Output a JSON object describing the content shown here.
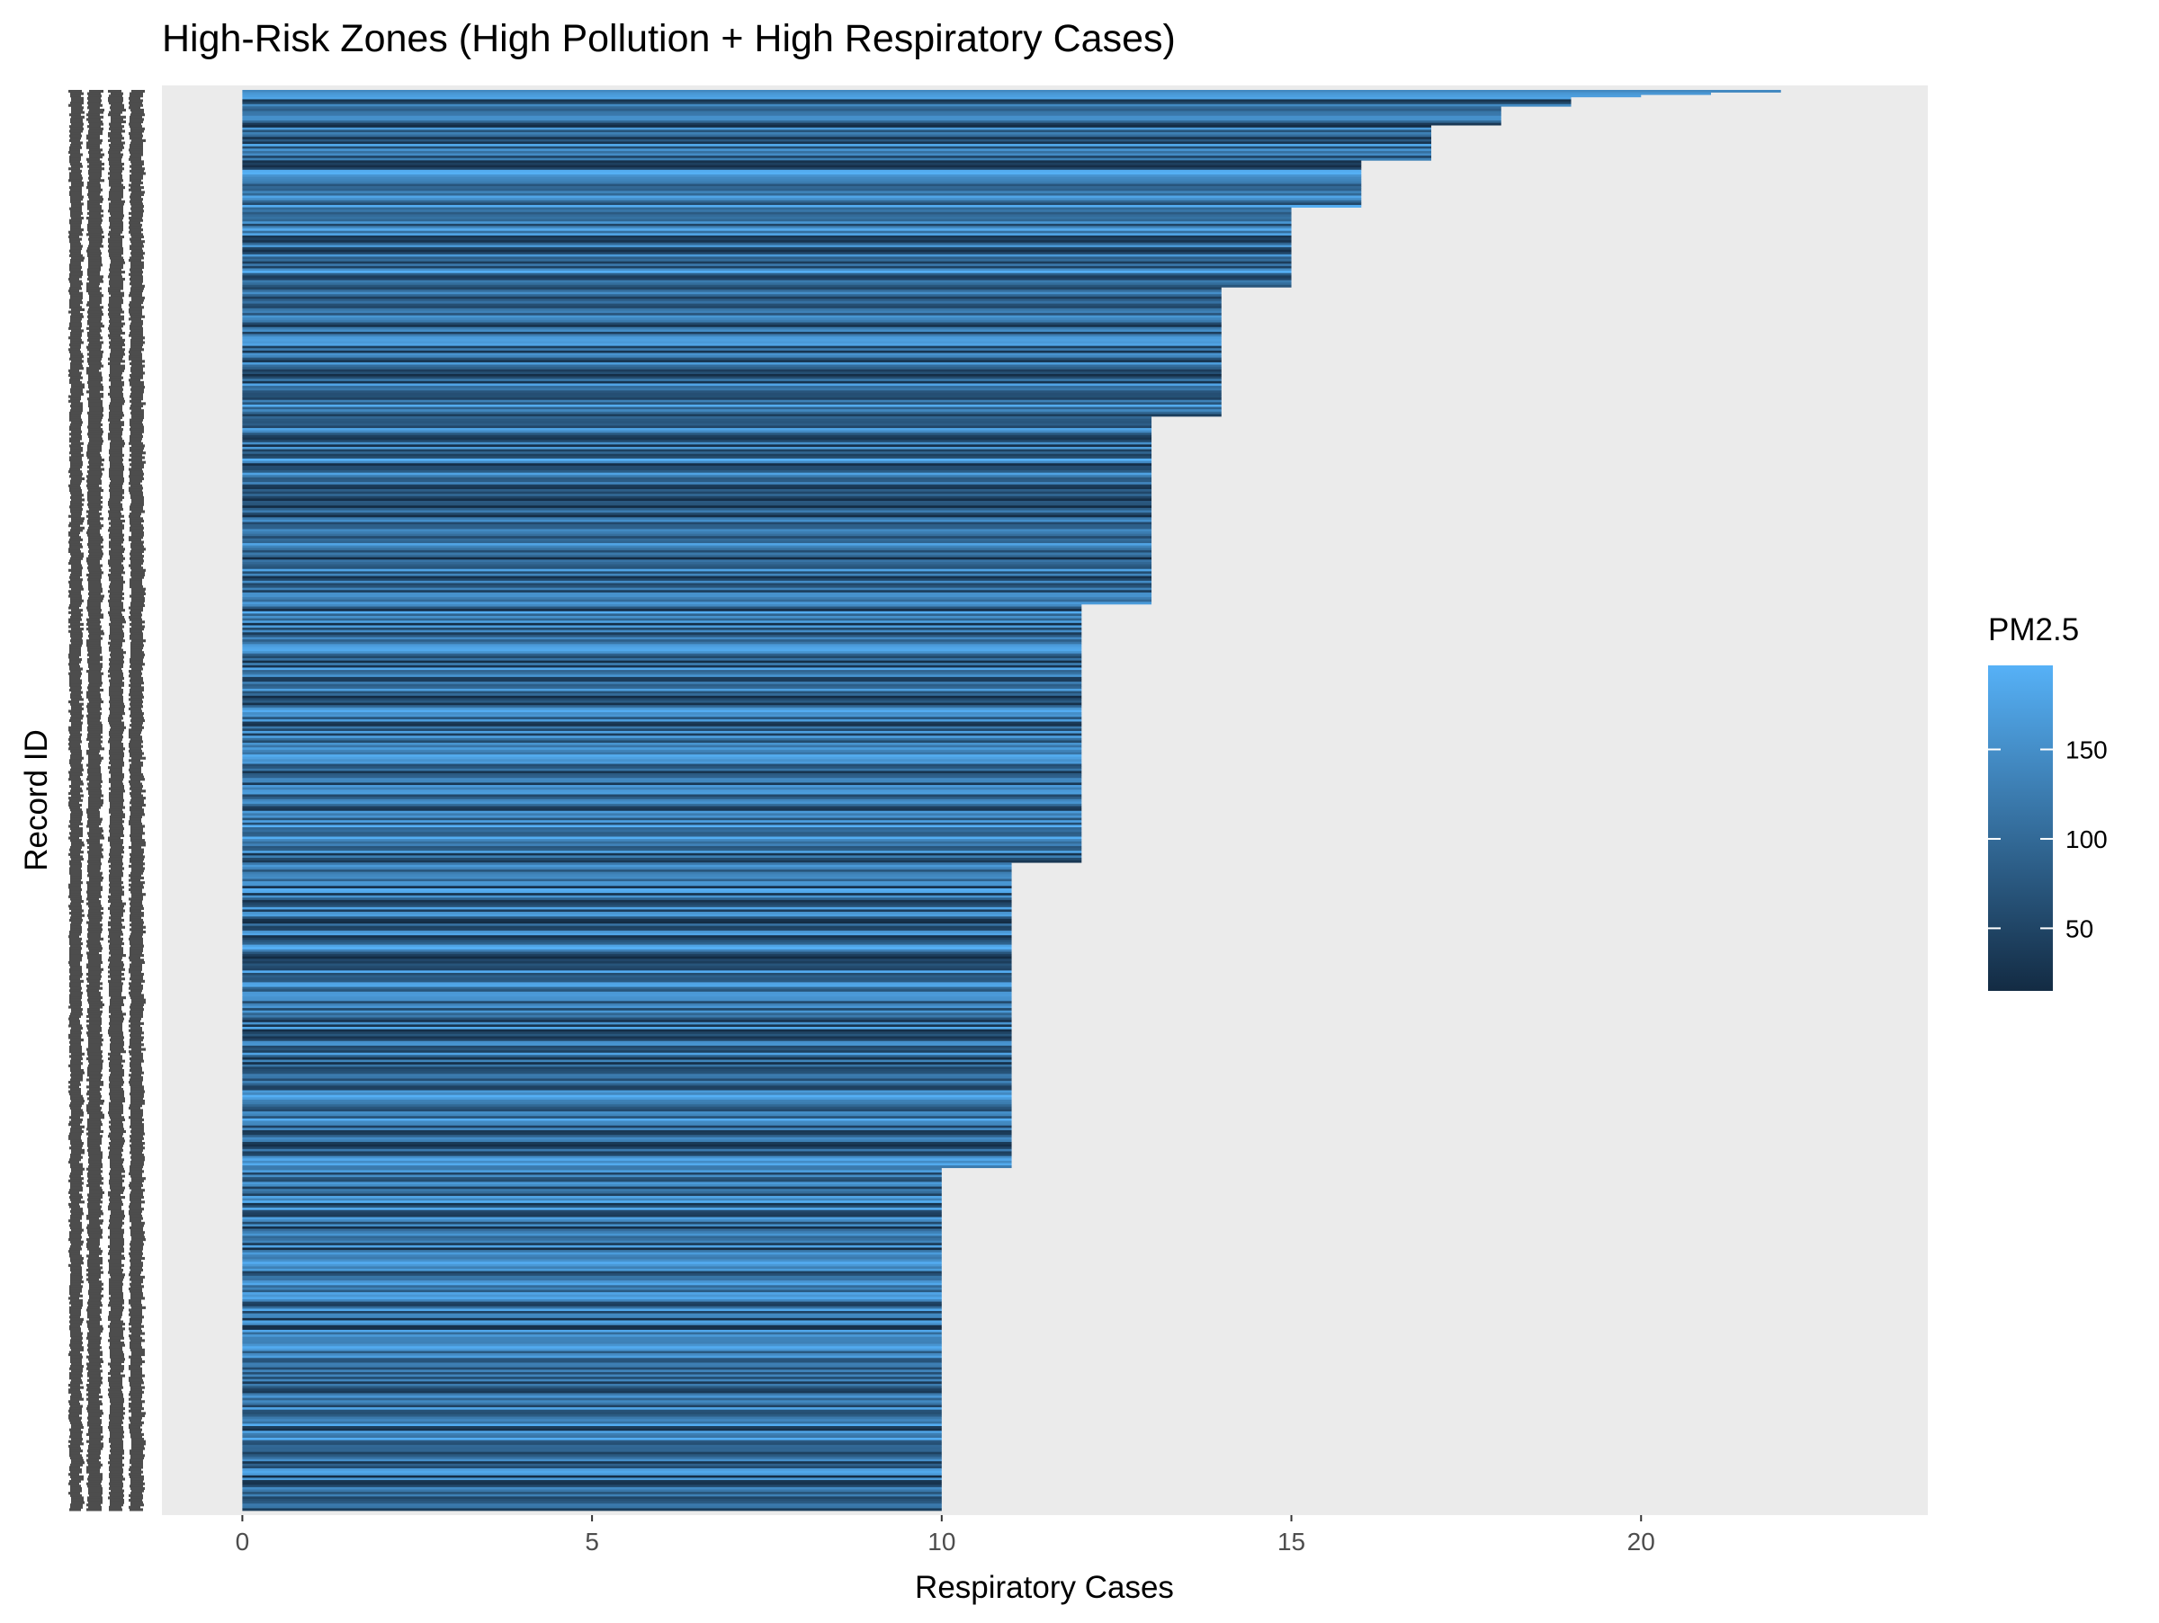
{
  "chart_data": {
    "type": "bar",
    "orientation": "horizontal",
    "title": "High-Risk Zones (High Pollution + High Respiratory Cases)",
    "xlabel": "Respiratory Cases",
    "ylabel": "Record ID",
    "xlim": [
      -1.15,
      24.1
    ],
    "xticks": [
      0,
      5,
      10,
      15,
      20
    ],
    "grid": false,
    "panel_background": "#EBEBEB",
    "legend": {
      "title": "PM2.5",
      "position": "right",
      "type": "colorbar",
      "range": [
        15,
        197
      ],
      "ticks": [
        50,
        100,
        150
      ],
      "low_color": "#132B43",
      "high_color": "#56B1F7"
    },
    "bar_groups": [
      {
        "value": 22,
        "count": 1
      },
      {
        "value": 21,
        "count": 1
      },
      {
        "value": 20,
        "count": 1
      },
      {
        "value": 19,
        "count": 4
      },
      {
        "value": 18,
        "count": 8
      },
      {
        "value": 17,
        "count": 15
      },
      {
        "value": 16,
        "count": 20
      },
      {
        "value": 15,
        "count": 34
      },
      {
        "value": 14,
        "count": 55
      },
      {
        "value": 13,
        "count": 80
      },
      {
        "value": 12,
        "count": 110
      },
      {
        "value": 11,
        "count": 130
      },
      {
        "value": 10,
        "count": 146
      }
    ]
  }
}
